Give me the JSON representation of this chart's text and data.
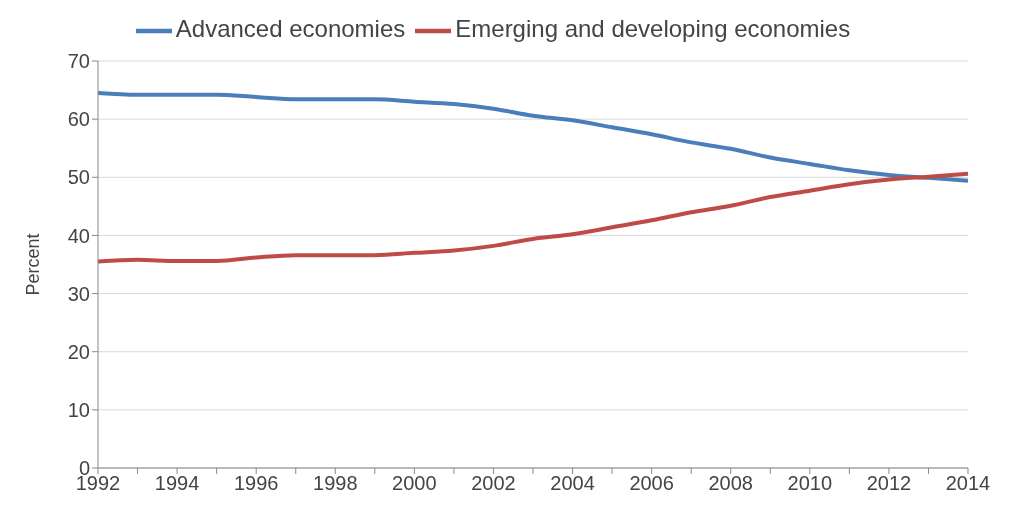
{
  "chart_data": {
    "type": "line",
    "ylabel": "Percent",
    "categories": [
      "1992",
      null,
      "1994",
      null,
      "1996",
      null,
      "1998",
      null,
      "2000",
      null,
      "2002",
      null,
      "2004",
      null,
      "2006",
      null,
      "2008",
      null,
      "2010",
      null,
      "2012",
      null,
      "2014"
    ],
    "series": [
      {
        "name": "Advanced economies",
        "color": "#4a7ebb",
        "values": [
          64.5,
          64.2,
          64.2,
          64.2,
          63.8,
          63.4,
          63.4,
          63.4,
          63.0,
          62.6,
          61.8,
          60.6,
          59.8,
          58.6,
          57.4,
          56.0,
          54.9,
          53.4,
          52.3,
          51.2,
          50.4,
          49.9,
          49.4
        ]
      },
      {
        "name": "Emerging and developing economies",
        "color": "#be4b48",
        "values": [
          35.5,
          35.8,
          35.6,
          35.6,
          36.2,
          36.6,
          36.6,
          36.6,
          37.0,
          37.4,
          38.2,
          39.4,
          40.2,
          41.4,
          42.6,
          44.0,
          45.1,
          46.6,
          47.7,
          48.8,
          49.6,
          50.1,
          50.6
        ]
      }
    ],
    "ylim": [
      0,
      70
    ],
    "yticks": [
      0,
      10,
      20,
      30,
      40,
      50,
      60,
      70
    ],
    "grid": "y",
    "legend": "top",
    "marker": "none",
    "line_style": "solid"
  }
}
